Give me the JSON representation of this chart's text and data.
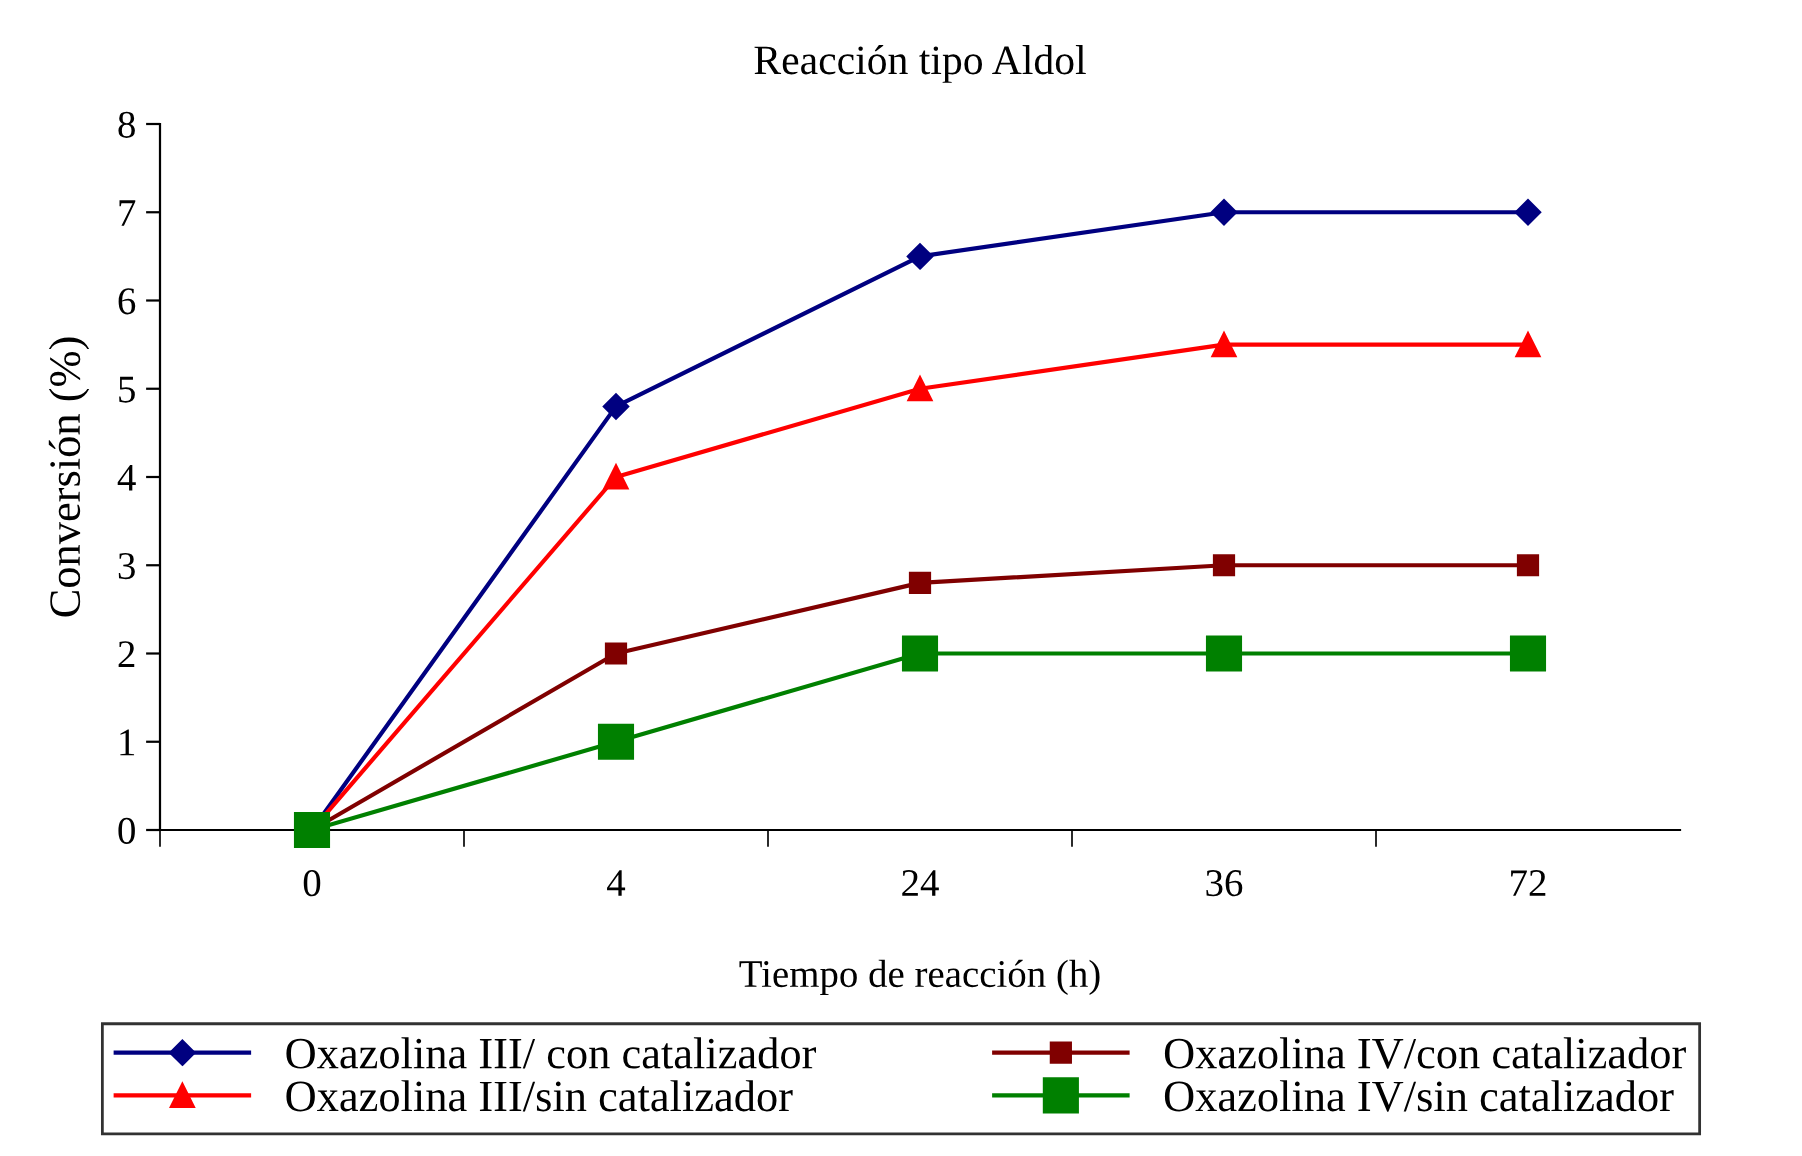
{
  "chart_data": {
    "type": "line",
    "title": "Reacción tipo Aldol",
    "xlabel": "Tiempo de reacción (h)",
    "ylabel": "Conversión (%)",
    "categories": [
      "0",
      "4",
      "24",
      "36",
      "72"
    ],
    "series": [
      {
        "name": "Oxazolina III/ con catalizador",
        "color": "#000080",
        "marker": "diamond",
        "values": [
          0,
          4.8,
          6.5,
          7,
          7
        ]
      },
      {
        "name": "Oxazolina III/sin catalizador",
        "color": "#ff0000",
        "marker": "triangle",
        "values": [
          0,
          4,
          5,
          5.5,
          5.5
        ]
      },
      {
        "name": "Oxazolina IV/con catalizador",
        "color": "#800000",
        "marker": "square",
        "values": [
          0,
          2,
          2.8,
          3,
          3
        ]
      },
      {
        "name": "Oxazolina IV/sin catalizador",
        "color": "#008000",
        "marker": "square",
        "values": [
          0,
          1,
          2,
          2,
          2
        ]
      }
    ],
    "ylim": [
      0,
      8
    ],
    "yticks": [
      0,
      1,
      2,
      3,
      4,
      5,
      6,
      7,
      8
    ],
    "grid": false,
    "legend": "bottom",
    "line_style": "solid"
  }
}
